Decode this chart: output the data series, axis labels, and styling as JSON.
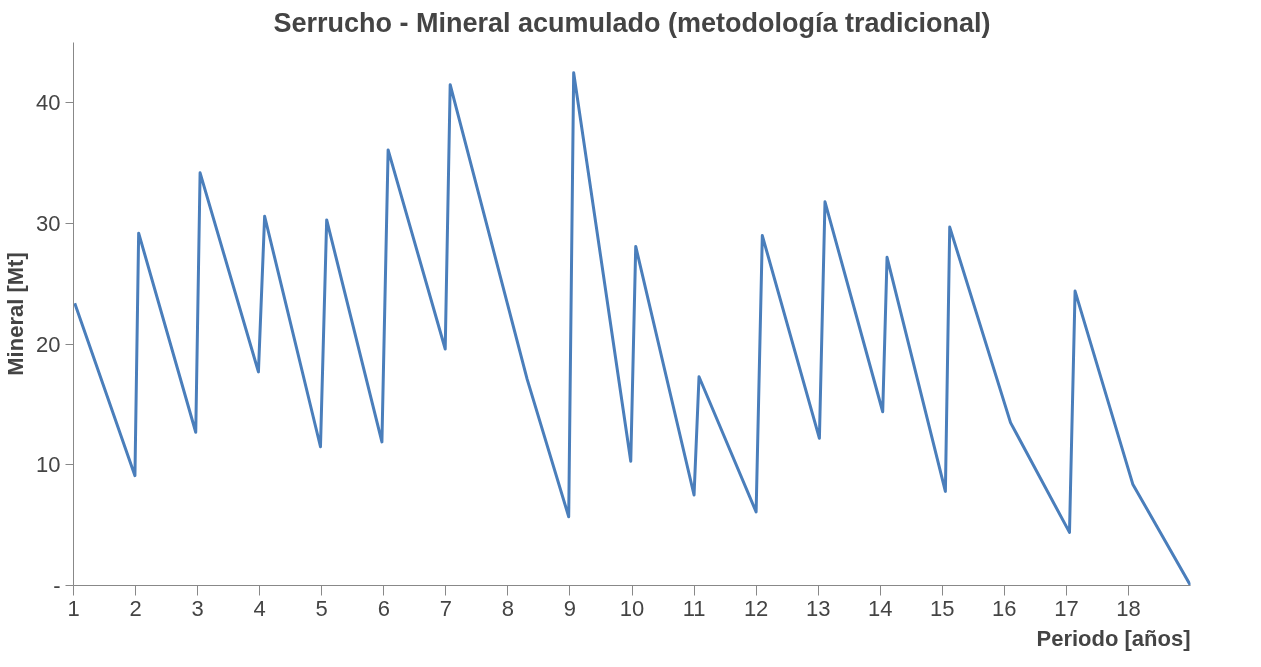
{
  "chart_data": {
    "type": "line",
    "title": "Serrucho - Mineral acumulado (metodología tradicional)",
    "xlabel": "Periodo [años]",
    "ylabel": "Mineral [Mt]",
    "x": [
      1.02,
      1.99,
      2.05,
      2.97,
      3.04,
      3.98,
      4.08,
      4.98,
      5.08,
      5.97,
      6.07,
      6.99,
      7.07,
      8.31,
      8.98,
      9.06,
      9.98,
      10.06,
      11.0,
      11.08,
      12.0,
      12.1,
      13.02,
      13.11,
      14.04,
      14.11,
      15.05,
      15.12,
      16.1,
      17.05,
      17.14,
      18.07,
      19.0
    ],
    "series": [
      {
        "color": "#4a7ebb",
        "values": [
          23.4,
          9.1,
          29.2,
          12.7,
          34.2,
          17.7,
          30.6,
          11.5,
          30.3,
          11.9,
          36.1,
          19.6,
          41.5,
          17.1,
          5.7,
          42.5,
          10.3,
          28.1,
          7.5,
          17.3,
          6.1,
          29.0,
          12.2,
          31.8,
          14.4,
          27.2,
          7.8,
          29.7,
          13.5,
          4.4,
          24.4,
          8.4,
          0
        ]
      }
    ],
    "xlim": [
      1,
      19
    ],
    "xticks": [
      1,
      2,
      3,
      4,
      5,
      6,
      7,
      8,
      9,
      10,
      11,
      12,
      13,
      14,
      15,
      16,
      17,
      18
    ],
    "ylim": [
      0,
      45
    ],
    "yticks": [
      {
        "value": 0,
        "label": "-"
      },
      10,
      20,
      30,
      40
    ],
    "grid": false,
    "marker": "none",
    "line_style": "solid"
  }
}
